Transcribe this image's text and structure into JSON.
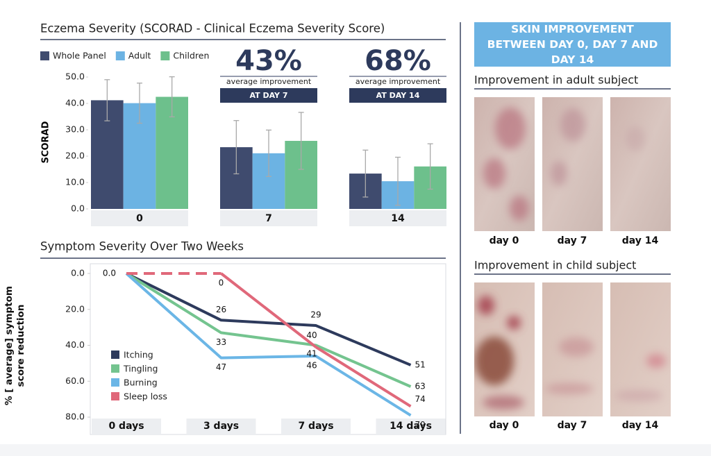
{
  "chart_data": [
    {
      "type": "bar",
      "title": "Eczema Severity (SCORAD - Clinical Eczema Severity Score)",
      "y_label": "SCORAD",
      "categories": [
        "0",
        "7",
        "14"
      ],
      "series": [
        {
          "name": "Whole Panel",
          "color": "#3f4b6e",
          "values": [
            41.2,
            23.4,
            13.4
          ],
          "errors": [
            7.8,
            10.1,
            8.9
          ]
        },
        {
          "name": "Adult",
          "color": "#6cb3e3",
          "values": [
            40.1,
            21.1,
            10.5
          ],
          "errors": [
            7.6,
            8.8,
            9.1
          ]
        },
        {
          "name": "Children",
          "color": "#6dc08c",
          "values": [
            42.5,
            25.8,
            16.1
          ],
          "errors": [
            7.6,
            10.8,
            8.6
          ]
        }
      ],
      "ylim": [
        0,
        50
      ],
      "yticks": [
        {
          "value": 0,
          "label": "0.0"
        },
        {
          "value": 10,
          "label": "10.0"
        },
        {
          "value": 20,
          "label": "20.0"
        },
        {
          "value": 30,
          "label": "30.0"
        },
        {
          "value": 40,
          "label": "40.0"
        },
        {
          "value": 50,
          "label": "50.0"
        }
      ],
      "legend": "top left"
    },
    {
      "type": "line",
      "title": "Symptom Severity Over Two Weeks",
      "y_label": "% [ average] symptom score reduction",
      "categories": [
        "0 days",
        "3 days",
        "7 days",
        "14 days"
      ],
      "series": [
        {
          "name": "Itching",
          "color": "#2d3a5c",
          "values": [
            0,
            26,
            29,
            51
          ],
          "value_labels": [
            "0.0",
            "26",
            "29",
            "51"
          ],
          "line_style": [
            "solid",
            "solid",
            "solid"
          ]
        },
        {
          "name": "Tingling",
          "color": "#74c48f",
          "values": [
            0,
            33,
            40,
            63
          ],
          "value_labels": [
            null,
            "33",
            "40",
            "63"
          ],
          "line_style": [
            "solid",
            "solid",
            "solid"
          ]
        },
        {
          "name": "Burning",
          "color": "#6bb6e6",
          "values": [
            0,
            47,
            46,
            79
          ],
          "value_labels": [
            null,
            "47",
            "46",
            "79"
          ],
          "line_style": [
            "solid",
            "solid",
            "solid"
          ]
        },
        {
          "name": "Sleep loss",
          "color": "#e0687a",
          "values": [
            0,
            0,
            41,
            74
          ],
          "value_labels": [
            null,
            "0",
            "41",
            "74"
          ],
          "line_style": [
            "dashed",
            "solid",
            "solid"
          ]
        }
      ],
      "ylim": [
        0,
        80
      ],
      "y_inverted": true,
      "yticks": [
        {
          "value": 0,
          "label": "0.0"
        },
        {
          "value": 20,
          "label": "20.0"
        },
        {
          "value": 40,
          "label": "40.0"
        },
        {
          "value": 60,
          "label": "60.0"
        },
        {
          "value": 80,
          "label": "80.0"
        }
      ],
      "legend": "lower left"
    }
  ],
  "highlights": [
    {
      "percent": "43%",
      "caption": "average improvement",
      "label": "AT DAY 7"
    },
    {
      "percent": "68%",
      "caption": "average improvement",
      "label": "AT DAY 14"
    }
  ],
  "side_panel": {
    "title": "SKIN IMPROVEMENT BETWEEN DAY 0, DAY 7 AND DAY 14",
    "sections": [
      {
        "title": "Improvement in adult subject",
        "photos": [
          "day 0",
          "day 7",
          "day 14"
        ]
      },
      {
        "title": "Improvement in child subject",
        "photos": [
          "day 0",
          "day 7",
          "day 14"
        ]
      }
    ]
  }
}
